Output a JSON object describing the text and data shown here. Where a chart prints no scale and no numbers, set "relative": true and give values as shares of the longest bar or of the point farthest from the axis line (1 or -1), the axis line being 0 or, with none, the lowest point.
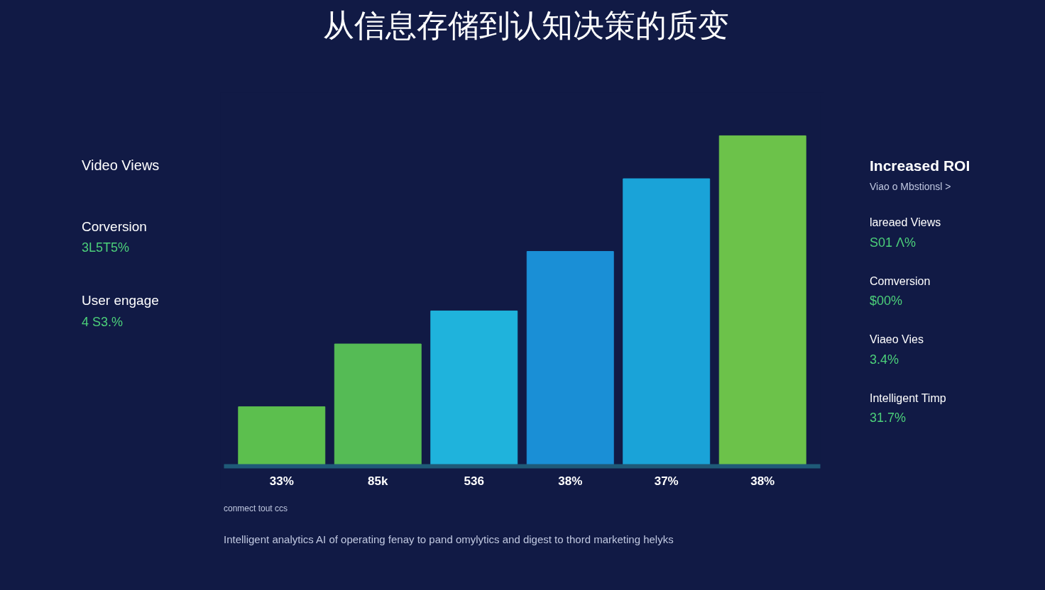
{
  "chart_data": {
    "type": "bar",
    "title": "从信息存储到认知决策的质变",
    "categories": [
      "33%",
      "85k",
      "536",
      "38%",
      "37%",
      "38%"
    ],
    "values": [
      0.18,
      0.37,
      0.47,
      0.65,
      0.87,
      1
    ],
    "colors": [
      "#5cbf4e",
      "#55bb55",
      "#1fb3dc",
      "#1a8fd6",
      "#1aa3d8",
      "#6cc24a"
    ],
    "relative": true,
    "grid": false,
    "annotations": [
      "Video Views",
      "Corversion",
      "3L5T5%",
      "User engage",
      "4 S3.%",
      "Increased ROI",
      "Viao o Mbstionsl >",
      "lareaed Views",
      "S01 Λ%",
      "Comversion",
      "$00%",
      "Viaeo Vies",
      "3.4%",
      "Intelligent Timp",
      "31.7%",
      "conmect tout ccs",
      "Intelligent analytics AI of operating fenay to pand omylytics and digest to thord marketing helyks"
    ]
  }
}
